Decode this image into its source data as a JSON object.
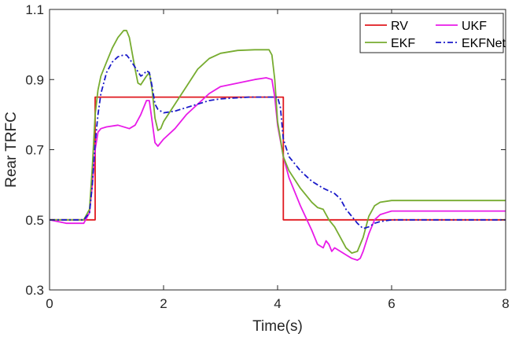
{
  "chart_data": {
    "type": "line",
    "title": "",
    "xlabel": "Time(s)",
    "ylabel": "Rear TRFC",
    "xlim": [
      0,
      8
    ],
    "ylim": [
      0.3,
      1.1
    ],
    "xticks": [
      0,
      2,
      4,
      6,
      8
    ],
    "xtick_labels": [
      "0",
      "2",
      "4",
      "6",
      "8"
    ],
    "yticks": [
      0.3,
      0.5,
      0.7,
      0.9,
      1.1
    ],
    "ytick_labels": [
      "0.3",
      "0.5",
      "0.7",
      "0.9",
      "1.1"
    ],
    "grid": false,
    "legend_position": "top-right",
    "series": [
      {
        "name": "RV",
        "color": "#e0191f",
        "dash": "solid",
        "x": [
          0,
          0.8,
          0.8,
          4.1,
          4.1,
          8
        ],
        "y": [
          0.5,
          0.5,
          0.85,
          0.85,
          0.5,
          0.5
        ]
      },
      {
        "name": "UKF",
        "color": "#e81be8",
        "dash": "solid",
        "x": [
          0,
          0.3,
          0.6,
          0.7,
          0.75,
          0.8,
          0.85,
          0.9,
          1.0,
          1.2,
          1.4,
          1.5,
          1.6,
          1.7,
          1.75,
          1.8,
          1.85,
          1.9,
          2.0,
          2.2,
          2.4,
          2.6,
          2.8,
          3.0,
          3.3,
          3.6,
          3.8,
          3.9,
          3.95,
          4.0,
          4.1,
          4.2,
          4.4,
          4.6,
          4.7,
          4.8,
          4.85,
          4.9,
          4.95,
          5.0,
          5.1,
          5.2,
          5.3,
          5.4,
          5.45,
          5.5,
          5.6,
          5.7,
          5.8,
          5.9,
          6.0,
          6.2,
          6.5,
          7.0,
          7.5,
          8.0
        ],
        "y": [
          0.5,
          0.49,
          0.49,
          0.52,
          0.6,
          0.7,
          0.75,
          0.76,
          0.765,
          0.77,
          0.76,
          0.77,
          0.8,
          0.84,
          0.84,
          0.78,
          0.72,
          0.71,
          0.73,
          0.76,
          0.8,
          0.83,
          0.86,
          0.88,
          0.89,
          0.9,
          0.905,
          0.9,
          0.85,
          0.77,
          0.68,
          0.62,
          0.54,
          0.47,
          0.43,
          0.42,
          0.44,
          0.43,
          0.41,
          0.42,
          0.41,
          0.4,
          0.39,
          0.385,
          0.39,
          0.41,
          0.46,
          0.5,
          0.515,
          0.52,
          0.525,
          0.525,
          0.525,
          0.525,
          0.525,
          0.525
        ]
      },
      {
        "name": "EKF",
        "color": "#77ac30",
        "dash": "solid",
        "x": [
          0,
          0.3,
          0.6,
          0.7,
          0.75,
          0.8,
          0.85,
          0.9,
          1.0,
          1.1,
          1.2,
          1.3,
          1.35,
          1.4,
          1.5,
          1.55,
          1.6,
          1.7,
          1.75,
          1.8,
          1.85,
          1.9,
          1.95,
          2.0,
          2.2,
          2.4,
          2.6,
          2.8,
          3.0,
          3.3,
          3.6,
          3.8,
          3.85,
          3.9,
          3.95,
          4.0,
          4.1,
          4.2,
          4.4,
          4.6,
          4.7,
          4.8,
          4.9,
          5.0,
          5.1,
          5.2,
          5.3,
          5.4,
          5.5,
          5.6,
          5.7,
          5.8,
          6.0,
          6.5,
          7.0,
          7.5,
          8.0
        ],
        "y": [
          0.5,
          0.5,
          0.5,
          0.53,
          0.65,
          0.8,
          0.87,
          0.91,
          0.95,
          0.99,
          1.02,
          1.04,
          1.04,
          1.02,
          0.93,
          0.89,
          0.885,
          0.91,
          0.92,
          0.87,
          0.79,
          0.755,
          0.76,
          0.78,
          0.83,
          0.88,
          0.93,
          0.96,
          0.975,
          0.983,
          0.985,
          0.985,
          0.985,
          0.97,
          0.9,
          0.78,
          0.68,
          0.64,
          0.59,
          0.55,
          0.535,
          0.53,
          0.5,
          0.48,
          0.45,
          0.42,
          0.405,
          0.41,
          0.45,
          0.51,
          0.54,
          0.55,
          0.555,
          0.555,
          0.555,
          0.555,
          0.555
        ]
      },
      {
        "name": "EKFNet",
        "color": "#1a1ac9",
        "dash": "dash-dot",
        "x": [
          0,
          0.3,
          0.6,
          0.7,
          0.75,
          0.8,
          0.85,
          0.9,
          1.0,
          1.1,
          1.2,
          1.3,
          1.35,
          1.4,
          1.5,
          1.6,
          1.65,
          1.7,
          1.75,
          1.8,
          1.85,
          1.9,
          2.0,
          2.2,
          2.5,
          2.8,
          3.0,
          3.5,
          4.0,
          4.05,
          4.1,
          4.2,
          4.4,
          4.6,
          4.8,
          5.0,
          5.1,
          5.2,
          5.3,
          5.4,
          5.5,
          5.6,
          5.7,
          5.8,
          6.0,
          6.5,
          7.0,
          7.5,
          8.0
        ],
        "y": [
          0.5,
          0.5,
          0.5,
          0.52,
          0.6,
          0.72,
          0.8,
          0.86,
          0.92,
          0.95,
          0.965,
          0.97,
          0.97,
          0.96,
          0.935,
          0.91,
          0.915,
          0.925,
          0.92,
          0.88,
          0.83,
          0.815,
          0.805,
          0.81,
          0.825,
          0.84,
          0.845,
          0.85,
          0.85,
          0.82,
          0.73,
          0.68,
          0.64,
          0.61,
          0.59,
          0.575,
          0.56,
          0.53,
          0.51,
          0.49,
          0.475,
          0.48,
          0.49,
          0.495,
          0.5,
          0.5,
          0.5,
          0.5,
          0.5
        ]
      }
    ]
  }
}
